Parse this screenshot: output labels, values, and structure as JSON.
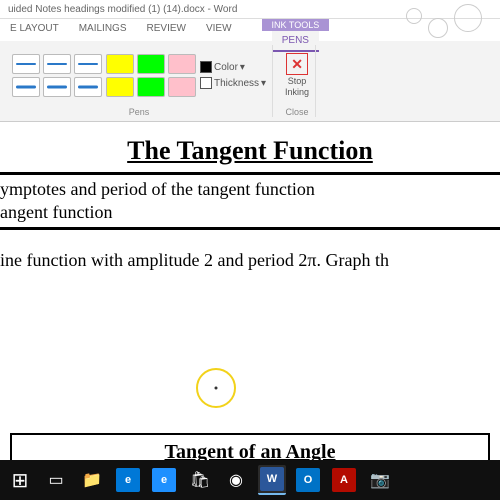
{
  "window": {
    "filename": "uided Notes headings modified (1) (14).docx - Word"
  },
  "tabs": {
    "items": [
      "E LAYOUT",
      "MAILINGS",
      "REVIEW",
      "VIEW"
    ],
    "contextGroup": "INK TOOLS",
    "active": "PENS"
  },
  "ribbon": {
    "groups": {
      "pens": "Pens",
      "close": "Close"
    },
    "color_label": "Color",
    "thickness_label": "Thickness",
    "stop": {
      "line1": "Stop",
      "line2": "Inking"
    },
    "pen_colors": [
      "#2a78c8",
      "#2a78c8",
      "#2a78c8",
      "#2a78c8",
      "#2a78c8",
      "#2a78c8"
    ],
    "highlighter_colors": [
      "#ffff00",
      "#00ff00",
      "#ffc0cb",
      "#ffff00",
      "#00ff00",
      "#ffc0cb"
    ],
    "color_chip": "#000000",
    "thickness_chip": "#ffffff"
  },
  "document": {
    "title": "The Tangent Function",
    "lines": [
      "ymptotes and period of the tangent function",
      "angent function",
      "ine function with amplitude 2 and period 2π.  Graph th"
    ],
    "box_title": "Tangent of an Angle",
    "colors": {
      "page_bg": "#ffffff",
      "text": "#000000",
      "cursor_ring": "#f2d21a"
    }
  },
  "taskbar": {
    "bg": "#101010",
    "apps": [
      {
        "name": "start",
        "glyph": "⊞",
        "bg": "transparent"
      },
      {
        "name": "task-view",
        "glyph": "▭",
        "bg": "transparent"
      },
      {
        "name": "file-explorer",
        "glyph": "📁",
        "bg": "transparent"
      },
      {
        "name": "edge",
        "glyph": "e",
        "bg": "#0078d7"
      },
      {
        "name": "ie",
        "glyph": "e",
        "bg": "#1e90ff"
      },
      {
        "name": "store",
        "glyph": "🛍",
        "bg": "transparent"
      },
      {
        "name": "chrome",
        "glyph": "◉",
        "bg": "transparent"
      },
      {
        "name": "word",
        "glyph": "W",
        "bg": "#2b579a"
      },
      {
        "name": "outlook",
        "glyph": "O",
        "bg": "#0072c6"
      },
      {
        "name": "acrobat",
        "glyph": "A",
        "bg": "#b30b00"
      },
      {
        "name": "camera",
        "glyph": "📷",
        "bg": "transparent"
      }
    ]
  }
}
